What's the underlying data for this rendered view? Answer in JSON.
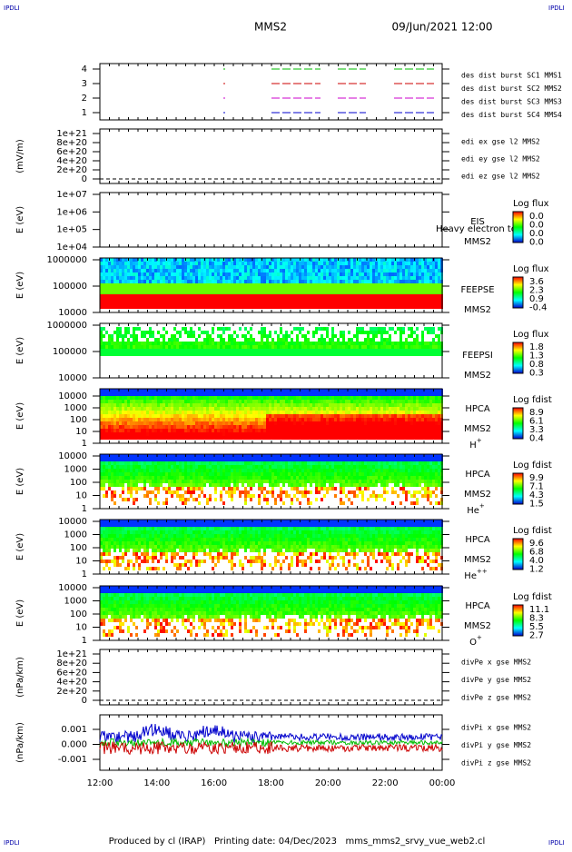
{
  "header": {
    "corner_left": "IPDLI",
    "corner_right": "IPDLI",
    "title": "MMS2",
    "date": "09/Jun/2021 12:00"
  },
  "panels": [
    {
      "yticks": [
        "4",
        "3",
        "2",
        "1"
      ],
      "legend": [
        {
          "text": "des dist burst SC1 MMS1",
          "color": "#0000cc"
        },
        {
          "text": "des dist burst SC2 MMS2",
          "color": "#cc00cc"
        },
        {
          "text": "des dist burst SC3 MMS3",
          "color": "#cc0000"
        },
        {
          "text": "des dist burst SC4 MMS4",
          "color": "#00bb00"
        }
      ]
    },
    {
      "ylabel": "(mV/m)",
      "yticks": [
        "1e+21",
        "8e+20",
        "6e+20",
        "4e+20",
        "2e+20",
        "0"
      ],
      "legend": [
        {
          "text": "edi ex gse l2 MMS2",
          "color": "#cc0000"
        },
        {
          "text": "edi ey gse l2 MMS2",
          "color": "#00bb00"
        },
        {
          "text": "edi ez gse l2 MMS2",
          "color": "#0000cc"
        }
      ]
    },
    {
      "ylabel": "E (eV)",
      "yticks": [
        "1e+07",
        "1e+06",
        "1e+05",
        "1e+04"
      ],
      "instrument": [
        "EIS",
        "MMS2"
      ],
      "overlay": "Heavy electron to",
      "colorbar": {
        "title": "Log flux",
        "labels": [
          "0.0",
          "0.0",
          "0.0",
          "0.0"
        ]
      }
    },
    {
      "ylabel": "E (eV)",
      "yticks": [
        "1000000",
        "100000",
        "10000"
      ],
      "instrument": [
        "FEEPSE",
        "MMS2"
      ],
      "colorbar": {
        "title": "Log flux",
        "labels": [
          "3.6",
          "2.3",
          "0.9",
          "-0.4"
        ]
      }
    },
    {
      "ylabel": "E (eV)",
      "yticks": [
        "1000000",
        "100000",
        "10000"
      ],
      "instrument": [
        "FEEPSI",
        "MMS2"
      ],
      "colorbar": {
        "title": "Log flux",
        "labels": [
          "1.8",
          "1.3",
          "0.8",
          "0.3"
        ]
      }
    },
    {
      "ylabel": "E (eV)",
      "yticks": [
        "10000",
        "1000",
        "100",
        "10",
        "1"
      ],
      "instrument": [
        "HPCA",
        "MMS2"
      ],
      "species": {
        "base": "H",
        "sup": "+"
      },
      "colorbar": {
        "title": "Log fdist",
        "labels": [
          "8.9",
          "6.1",
          "3.3",
          "0.4"
        ]
      }
    },
    {
      "ylabel": "E (eV)",
      "yticks": [
        "10000",
        "1000",
        "100",
        "10",
        "1"
      ],
      "instrument": [
        "HPCA",
        "MMS2"
      ],
      "species": {
        "base": "He",
        "sup": "+"
      },
      "colorbar": {
        "title": "Log fdist",
        "labels": [
          "9.9",
          "7.1",
          "4.3",
          "1.5"
        ]
      }
    },
    {
      "ylabel": "E (eV)",
      "yticks": [
        "10000",
        "1000",
        "100",
        "10",
        "1"
      ],
      "instrument": [
        "HPCA",
        "MMS2"
      ],
      "species": {
        "base": "He",
        "sup": "++"
      },
      "colorbar": {
        "title": "Log fdist",
        "labels": [
          "9.6",
          "6.8",
          "4.0",
          "1.2"
        ]
      }
    },
    {
      "ylabel": "E (eV)",
      "yticks": [
        "10000",
        "1000",
        "100",
        "10",
        "1"
      ],
      "instrument": [
        "HPCA",
        "MMS2"
      ],
      "species": {
        "base": "O",
        "sup": "+"
      },
      "colorbar": {
        "title": "Log fdist",
        "labels": [
          "11.1",
          "8.3",
          "5.5",
          "2.7"
        ]
      }
    },
    {
      "ylabel": "(nPa/km)",
      "yticks": [
        "1e+21",
        "8e+20",
        "6e+20",
        "4e+20",
        "2e+20",
        "0"
      ],
      "legend": [
        {
          "text": "divPe x gse MMS2",
          "color": "#cc0000"
        },
        {
          "text": "divPe y gse MMS2",
          "color": "#00bb00"
        },
        {
          "text": "divPe z gse MMS2",
          "color": "#0000cc"
        }
      ]
    },
    {
      "ylabel": "(nPa/km)",
      "yticks": [
        "0.001",
        "0.000",
        "-0.001"
      ],
      "legend": [
        {
          "text": "divPi x gse MMS2",
          "color": "#cc0000"
        },
        {
          "text": "divPi y gse MMS2",
          "color": "#00bb00"
        },
        {
          "text": "divPi z gse MMS2",
          "color": "#0000cc"
        }
      ]
    }
  ],
  "xticks": [
    "12:00",
    "14:00",
    "16:00",
    "18:00",
    "20:00",
    "22:00",
    "00:00"
  ],
  "footer": {
    "corner_left": "IPDLI",
    "corner_right": "IPDLI",
    "text": "Produced by cl (IRAP)   Printing date: 04/Dec/2023   mms_mms2_srvy_vue_web2.cl"
  }
}
